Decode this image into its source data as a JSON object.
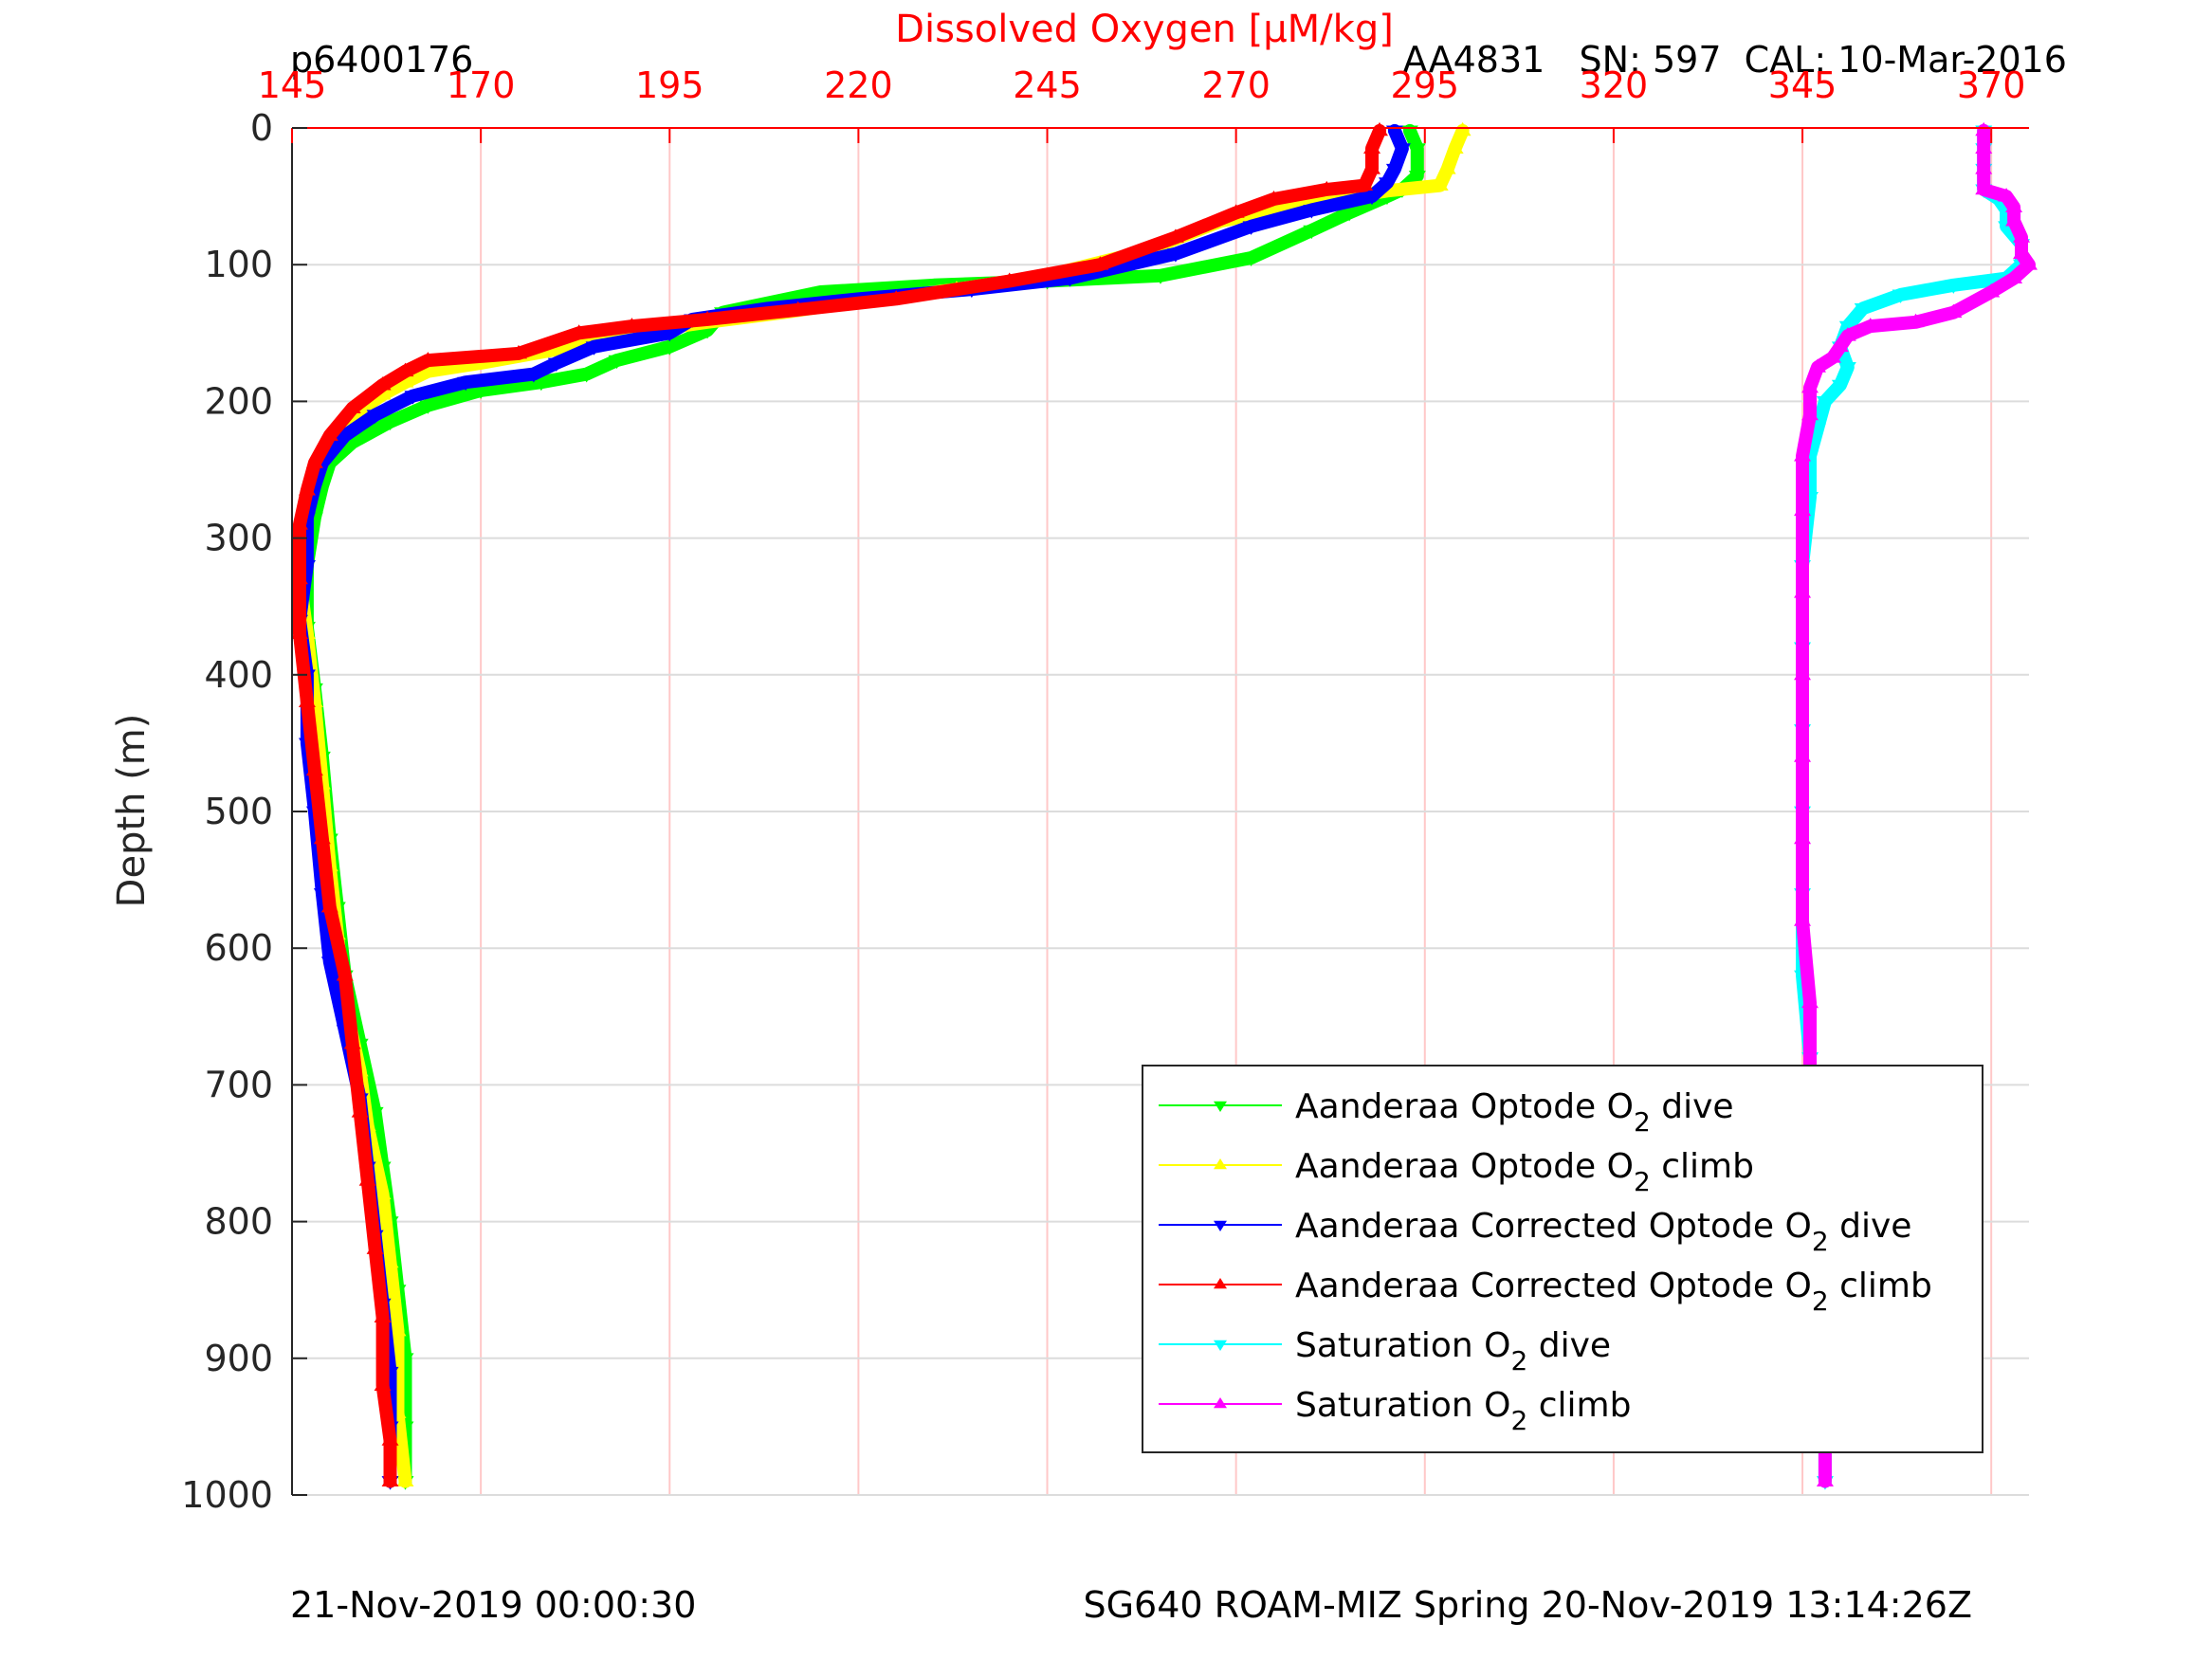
{
  "header": {
    "profile_id": "p6400176",
    "sensor_info": "AA4831   SN: 597  CAL: 10-Mar-2016"
  },
  "footer": {
    "left": "21-Nov-2019 00:00:30",
    "right": "SG640 ROAM-MIZ Spring 20-Nov-2019 13:14:26Z"
  },
  "colors": {
    "axis_accent": "#ff0000",
    "grid_vertical": "#ffc8c8",
    "grid_horizontal": "#dcdcdc"
  },
  "chart_data": {
    "type": "line",
    "title": "",
    "xlabel": "Dissolved Oxygen [μM/kg]",
    "ylabel": "Depth (m)",
    "xlim": [
      145,
      375
    ],
    "ylim": [
      0,
      1000
    ],
    "y_reversed": true,
    "x_axis_position": "top",
    "x_ticks": [
      145,
      170,
      195,
      220,
      245,
      270,
      295,
      320,
      345,
      370
    ],
    "y_ticks": [
      0,
      100,
      200,
      300,
      400,
      500,
      600,
      700,
      800,
      900,
      1000
    ],
    "grid": true,
    "legend_position": "bottom-right",
    "series": [
      {
        "name": "Aanderaa Optode O2 dive",
        "label_main": "Aanderaa Optode O",
        "label_sub": "2",
        "label_tail": " dive",
        "color": "#00ff00",
        "marker": "triangle-down",
        "points": [
          [
            293,
            2
          ],
          [
            294,
            15
          ],
          [
            294,
            35
          ],
          [
            292,
            45
          ],
          [
            290,
            50
          ],
          [
            285,
            62
          ],
          [
            280,
            75
          ],
          [
            272,
            95
          ],
          [
            260,
            108
          ],
          [
            245,
            112
          ],
          [
            230,
            115
          ],
          [
            215,
            120
          ],
          [
            202,
            135
          ],
          [
            200,
            148
          ],
          [
            195,
            160
          ],
          [
            188,
            170
          ],
          [
            184,
            180
          ],
          [
            178,
            186
          ],
          [
            170,
            192
          ],
          [
            163,
            203
          ],
          [
            158,
            215
          ],
          [
            153,
            230
          ],
          [
            150,
            245
          ],
          [
            149,
            262
          ],
          [
            148,
            285
          ],
          [
            147,
            320
          ],
          [
            147,
            365
          ],
          [
            148,
            410
          ],
          [
            149,
            460
          ],
          [
            150,
            520
          ],
          [
            151,
            570
          ],
          [
            152,
            620
          ],
          [
            154,
            670
          ],
          [
            156,
            720
          ],
          [
            157,
            760
          ],
          [
            158,
            800
          ],
          [
            159,
            850
          ],
          [
            160,
            900
          ],
          [
            160,
            950
          ],
          [
            160,
            990
          ]
        ]
      },
      {
        "name": "Aanderaa Optode O2 climb",
        "label_main": "Aanderaa Optode O",
        "label_sub": "2",
        "label_tail": " climb",
        "color": "#ffff00",
        "marker": "triangle-up",
        "points": [
          [
            300,
            2
          ],
          [
            299,
            15
          ],
          [
            298,
            30
          ],
          [
            297,
            42
          ],
          [
            290,
            46
          ],
          [
            280,
            55
          ],
          [
            268,
            68
          ],
          [
            258,
            90
          ],
          [
            245,
            108
          ],
          [
            233,
            118
          ],
          [
            220,
            127
          ],
          [
            210,
            135
          ],
          [
            200,
            142
          ],
          [
            190,
            150
          ],
          [
            180,
            162
          ],
          [
            170,
            172
          ],
          [
            163,
            178
          ],
          [
            160,
            186
          ],
          [
            157,
            195
          ],
          [
            153,
            210
          ],
          [
            150,
            230
          ],
          [
            148,
            255
          ],
          [
            147,
            275
          ],
          [
            146,
            300
          ],
          [
            146,
            330
          ],
          [
            147,
            370
          ],
          [
            148,
            420
          ],
          [
            149,
            480
          ],
          [
            150,
            540
          ],
          [
            151,
            590
          ],
          [
            152,
            640
          ],
          [
            154,
            690
          ],
          [
            155,
            730
          ],
          [
            157,
            780
          ],
          [
            158,
            830
          ],
          [
            159,
            880
          ],
          [
            159,
            940
          ],
          [
            160,
            990
          ]
        ]
      },
      {
        "name": "Aanderaa Corrected Optode O2 dive",
        "label_main": "Aanderaa Corrected Optode O",
        "label_sub": "2",
        "label_tail": " dive",
        "color": "#0000ff",
        "marker": "triangle-down",
        "points": [
          [
            291,
            2
          ],
          [
            292,
            15
          ],
          [
            291,
            30
          ],
          [
            290,
            40
          ],
          [
            288,
            50
          ],
          [
            280,
            60
          ],
          [
            272,
            72
          ],
          [
            262,
            92
          ],
          [
            248,
            110
          ],
          [
            235,
            118
          ],
          [
            220,
            125
          ],
          [
            208,
            132
          ],
          [
            198,
            140
          ],
          [
            195,
            150
          ],
          [
            185,
            160
          ],
          [
            180,
            172
          ],
          [
            177,
            180
          ],
          [
            168,
            186
          ],
          [
            161,
            196
          ],
          [
            156,
            210
          ],
          [
            152,
            225
          ],
          [
            149,
            245
          ],
          [
            148,
            262
          ],
          [
            147,
            285
          ],
          [
            147,
            320
          ],
          [
            146,
            360
          ],
          [
            147,
            400
          ],
          [
            147,
            450
          ],
          [
            148,
            500
          ],
          [
            149,
            560
          ],
          [
            150,
            610
          ],
          [
            152,
            660
          ],
          [
            154,
            710
          ],
          [
            155,
            760
          ],
          [
            156,
            810
          ],
          [
            157,
            860
          ],
          [
            158,
            910
          ],
          [
            158,
            950
          ],
          [
            158,
            990
          ]
        ]
      },
      {
        "name": "Aanderaa Corrected Optode O2 climb",
        "label_main": "Aanderaa Corrected Optode O",
        "label_sub": "2",
        "label_tail": " climb",
        "color": "#ff0000",
        "marker": "triangle-up",
        "points": [
          [
            289,
            2
          ],
          [
            288,
            15
          ],
          [
            288,
            30
          ],
          [
            287,
            42
          ],
          [
            282,
            45
          ],
          [
            275,
            52
          ],
          [
            270,
            62
          ],
          [
            262,
            80
          ],
          [
            252,
            100
          ],
          [
            240,
            112
          ],
          [
            225,
            125
          ],
          [
            212,
            133
          ],
          [
            200,
            140
          ],
          [
            190,
            145
          ],
          [
            183,
            150
          ],
          [
            175,
            165
          ],
          [
            163,
            170
          ],
          [
            160,
            178
          ],
          [
            157,
            188
          ],
          [
            153,
            205
          ],
          [
            150,
            225
          ],
          [
            148,
            245
          ],
          [
            147,
            265
          ],
          [
            146,
            290
          ],
          [
            146,
            330
          ],
          [
            146,
            370
          ],
          [
            147,
            420
          ],
          [
            148,
            470
          ],
          [
            149,
            520
          ],
          [
            150,
            570
          ],
          [
            152,
            620
          ],
          [
            153,
            670
          ],
          [
            154,
            720
          ],
          [
            155,
            770
          ],
          [
            156,
            820
          ],
          [
            157,
            870
          ],
          [
            157,
            920
          ],
          [
            158,
            960
          ],
          [
            158,
            990
          ]
        ]
      },
      {
        "name": "Saturation O2 dive",
        "label_main": "Saturation O",
        "label_sub": "2",
        "label_tail": " dive",
        "color": "#00ffff",
        "marker": "triangle-down",
        "points": [
          [
            369,
            2
          ],
          [
            369,
            15
          ],
          [
            369,
            30
          ],
          [
            369,
            45
          ],
          [
            371,
            52
          ],
          [
            372,
            60
          ],
          [
            372,
            72
          ],
          [
            374,
            85
          ],
          [
            374,
            100
          ],
          [
            372,
            110
          ],
          [
            365,
            115
          ],
          [
            358,
            122
          ],
          [
            353,
            132
          ],
          [
            351,
            145
          ],
          [
            350,
            160
          ],
          [
            351,
            175
          ],
          [
            350,
            188
          ],
          [
            348,
            200
          ],
          [
            347,
            220
          ],
          [
            346,
            240
          ],
          [
            346,
            270
          ],
          [
            345,
            320
          ],
          [
            345,
            380
          ],
          [
            345,
            440
          ],
          [
            345,
            500
          ],
          [
            345,
            560
          ],
          [
            345,
            620
          ],
          [
            346,
            680
          ],
          [
            346,
            740
          ],
          [
            347,
            800
          ],
          [
            347,
            860
          ],
          [
            348,
            920
          ],
          [
            348,
            990
          ]
        ]
      },
      {
        "name": "Saturation O2 climb",
        "label_main": "Saturation O",
        "label_sub": "2",
        "label_tail": " climb",
        "color": "#ff00ff",
        "marker": "triangle-up",
        "points": [
          [
            369,
            2
          ],
          [
            369,
            15
          ],
          [
            369,
            30
          ],
          [
            369,
            45
          ],
          [
            372,
            50
          ],
          [
            373,
            58
          ],
          [
            373,
            68
          ],
          [
            374,
            80
          ],
          [
            374,
            92
          ],
          [
            375,
            100
          ],
          [
            373,
            110
          ],
          [
            370,
            120
          ],
          [
            365,
            135
          ],
          [
            360,
            142
          ],
          [
            354,
            145
          ],
          [
            351,
            152
          ],
          [
            350,
            160
          ],
          [
            349,
            168
          ],
          [
            347,
            175
          ],
          [
            346,
            190
          ],
          [
            346,
            210
          ],
          [
            345,
            240
          ],
          [
            345,
            280
          ],
          [
            345,
            340
          ],
          [
            345,
            400
          ],
          [
            345,
            460
          ],
          [
            345,
            520
          ],
          [
            345,
            580
          ],
          [
            346,
            640
          ],
          [
            346,
            700
          ],
          [
            346,
            760
          ],
          [
            347,
            820
          ],
          [
            347,
            880
          ],
          [
            348,
            940
          ],
          [
            348,
            990
          ]
        ]
      }
    ]
  }
}
